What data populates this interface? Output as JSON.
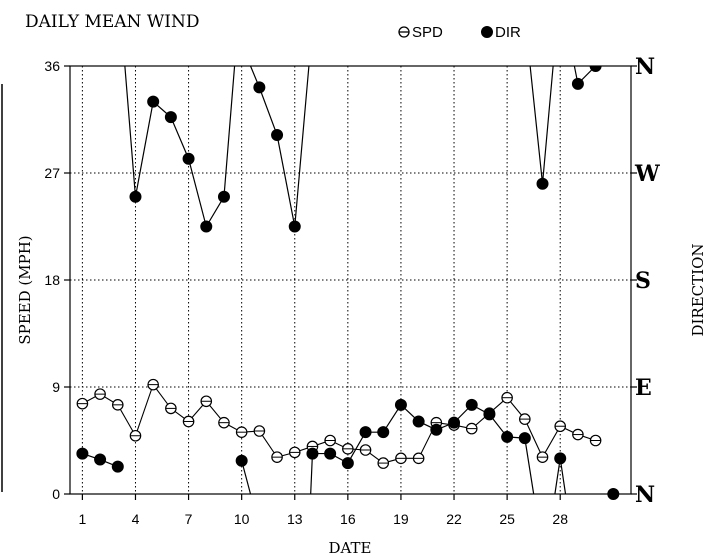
{
  "chart_data": {
    "type": "line",
    "title": "DAILY MEAN WIND",
    "xlabel": "DATE",
    "ylabel": "SPEED (MPH)",
    "ylabel_right": "DIRECTION",
    "x_ticks": [
      "1",
      "4",
      "7",
      "10",
      "13",
      "16",
      "19",
      "22",
      "25",
      "28"
    ],
    "y_ticks": [
      "0",
      "9",
      "18",
      "27",
      "36"
    ],
    "direction_ticks": [
      "N",
      "E",
      "S",
      "W",
      "N"
    ],
    "ylim": [
      0,
      36
    ],
    "xlim": [
      0.3,
      32
    ],
    "grid": true,
    "legend_position": "top-right",
    "series": [
      {
        "name": "SPD",
        "marker": "hollow-circle",
        "axis": "speed",
        "x": [
          1,
          2,
          3,
          4,
          5,
          6,
          7,
          8,
          9,
          10,
          11,
          12,
          13,
          14,
          15,
          16,
          17,
          18,
          19,
          20,
          21,
          22,
          23,
          24,
          25,
          26,
          27,
          28,
          29,
          30
        ],
        "values": [
          7.6,
          8.4,
          7.5,
          4.9,
          9.2,
          7.2,
          6.1,
          7.8,
          6.0,
          5.2,
          5.3,
          3.1,
          3.5,
          4.0,
          4.5,
          3.8,
          3.7,
          2.6,
          3.0,
          3.0,
          6.0,
          5.8,
          5.5,
          6.8,
          8.1,
          6.3,
          3.1,
          5.7,
          5.0,
          4.5
        ]
      },
      {
        "name": "DIR",
        "marker": "filled-circle",
        "axis": "direction",
        "note_units": "direction plotted on 0-36 scale (N=0, E=9, S=18, W=27, N=36)",
        "segments": [
          {
            "x": [
              1,
              2,
              3
            ],
            "values": [
              3.4,
              2.9,
              2.3
            ]
          },
          {
            "x": [
              3.4,
              4,
              5,
              6,
              7,
              8,
              9,
              9.6
            ],
            "values": [
              36,
              25.0,
              33.0,
              31.7,
              28.2,
              22.5,
              25.0,
              36
            ]
          },
          {
            "x": [
              10,
              10.5
            ],
            "values": [
              2.8,
              0
            ]
          },
          {
            "x": [
              10.5,
              11,
              12,
              13,
              13.8
            ],
            "values": [
              36,
              34.2,
              30.2,
              22.5,
              36
            ]
          },
          {
            "x": [
              13.9,
              14,
              15,
              16,
              17,
              18,
              19,
              20,
              21,
              22,
              23,
              24,
              25,
              26,
              26.5
            ],
            "values": [
              0,
              3.4,
              3.4,
              2.6,
              5.2,
              5.2,
              7.5,
              6.1,
              5.4,
              6.0,
              7.5,
              6.7,
              4.8,
              4.7,
              0
            ]
          },
          {
            "x": [
              26.3,
              27,
              27.6
            ],
            "values": [
              36,
              26.1,
              36
            ]
          },
          {
            "x": [
              27.7,
              28,
              28.3
            ],
            "values": [
              0,
              3.0,
              0
            ]
          },
          {
            "x": [
              28.8,
              29,
              30
            ],
            "values": [
              36,
              34.5,
              36
            ]
          },
          {
            "x": [
              31
            ],
            "values": [
              0
            ]
          }
        ]
      }
    ]
  }
}
